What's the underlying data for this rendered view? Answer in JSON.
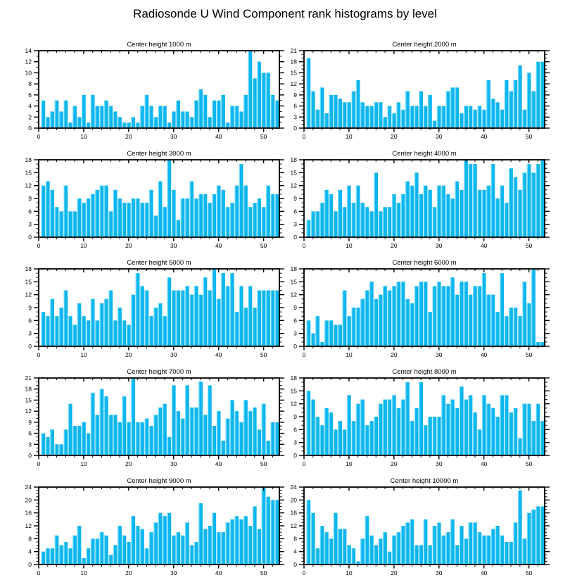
{
  "page": {
    "title": "Radiosonde U Wind Component rank histograms by level"
  },
  "style": {
    "background": "#ffffff",
    "axis_color": "#000000",
    "bar_color": "#0db6ef",
    "bar_highlight": "#7adef9",
    "text_color": "#000000"
  },
  "chart_data": [
    {
      "type": "bar",
      "title": "Center height 1000 m",
      "xlabel": "",
      "ylabel": "",
      "xlim": [
        0,
        53.5
      ],
      "ylim": [
        0,
        14
      ],
      "x_ticks": [
        0,
        10,
        20,
        30,
        40,
        50
      ],
      "y_ticks": [
        0,
        2,
        4,
        6,
        8,
        10,
        12,
        14
      ],
      "x_minor_step": 2,
      "y_minor_step": 1,
      "grid": false,
      "legend": "none",
      "values": [
        5,
        2,
        3,
        5,
        3,
        5,
        1,
        4,
        2,
        6,
        1,
        6,
        4,
        4,
        5,
        4,
        3,
        2,
        1,
        1,
        2,
        1,
        4,
        6,
        4,
        2,
        4,
        4,
        1,
        3,
        5,
        3,
        3,
        2,
        5,
        7,
        6,
        2,
        5,
        5,
        6,
        1,
        4,
        4,
        3,
        6,
        14,
        9,
        12,
        10,
        10,
        6,
        5
      ]
    },
    {
      "type": "bar",
      "title": "Center height 2000 m",
      "xlabel": "",
      "ylabel": "",
      "xlim": [
        0,
        53.5
      ],
      "ylim": [
        0,
        21
      ],
      "x_ticks": [
        0,
        10,
        20,
        30,
        40,
        50
      ],
      "y_ticks": [
        0,
        3,
        6,
        9,
        12,
        15,
        18,
        21
      ],
      "x_minor_step": 2,
      "y_minor_step": 1,
      "grid": false,
      "legend": "none",
      "values": [
        19,
        10,
        5,
        11,
        4,
        9,
        9,
        8,
        7,
        7,
        10,
        13,
        7,
        6,
        6,
        7,
        7,
        3,
        6,
        4,
        7,
        5,
        10,
        6,
        6,
        10,
        6,
        9,
        2,
        6,
        6,
        10,
        11,
        11,
        4,
        6,
        6,
        5,
        6,
        5,
        13,
        8,
        7,
        5,
        13,
        10,
        13,
        17,
        5,
        15,
        10,
        18,
        18
      ]
    },
    {
      "type": "bar",
      "title": "Center height 3000 m",
      "xlabel": "",
      "ylabel": "",
      "xlim": [
        0,
        53.5
      ],
      "ylim": [
        0,
        18
      ],
      "x_ticks": [
        0,
        10,
        20,
        30,
        40,
        50
      ],
      "y_ticks": [
        0,
        3,
        6,
        9,
        12,
        15,
        18
      ],
      "x_minor_step": 2,
      "y_minor_step": 1,
      "grid": false,
      "legend": "none",
      "values": [
        12,
        13,
        11,
        7,
        6,
        12,
        6,
        6,
        9,
        8,
        9,
        10,
        11,
        12,
        12,
        6,
        11,
        9,
        8,
        8,
        9,
        9,
        8,
        8,
        11,
        5,
        13,
        7,
        18,
        11,
        4,
        9,
        9,
        13,
        9,
        10,
        10,
        8,
        10,
        12,
        11,
        7,
        8,
        12,
        17,
        12,
        7,
        8,
        9,
        7,
        12,
        10,
        10
      ]
    },
    {
      "type": "bar",
      "title": "Center height 4000 m",
      "xlabel": "",
      "ylabel": "",
      "xlim": [
        0,
        53.5
      ],
      "ylim": [
        0,
        18
      ],
      "x_ticks": [
        0,
        10,
        20,
        30,
        40,
        50
      ],
      "y_ticks": [
        0,
        3,
        6,
        9,
        12,
        15,
        18
      ],
      "x_minor_step": 2,
      "y_minor_step": 1,
      "grid": false,
      "legend": "none",
      "values": [
        4,
        6,
        6,
        8,
        11,
        10,
        6,
        11,
        7,
        12,
        8,
        12,
        8,
        7,
        6,
        15,
        6,
        7,
        7,
        10,
        8,
        10,
        13,
        12,
        15,
        10,
        12,
        11,
        7,
        12,
        12,
        10,
        9,
        13,
        11,
        18,
        17,
        17,
        11,
        11,
        12,
        17,
        9,
        12,
        8,
        16,
        14,
        11,
        15,
        17,
        15,
        17,
        18
      ]
    },
    {
      "type": "bar",
      "title": "Center height 5000 m",
      "xlabel": "",
      "ylabel": "",
      "xlim": [
        0,
        53.5
      ],
      "ylim": [
        0,
        18
      ],
      "x_ticks": [
        0,
        10,
        20,
        30,
        40,
        50
      ],
      "y_ticks": [
        0,
        3,
        6,
        9,
        12,
        15,
        18
      ],
      "x_minor_step": 2,
      "y_minor_step": 1,
      "grid": false,
      "legend": "none",
      "values": [
        8,
        7,
        11,
        7,
        9,
        13,
        7,
        5,
        10,
        7,
        6,
        11,
        6,
        10,
        11,
        13,
        6,
        9,
        6,
        5,
        12,
        17,
        14,
        13,
        7,
        9,
        10,
        7,
        16,
        13,
        13,
        13,
        14,
        12,
        14,
        12,
        16,
        13,
        18,
        11,
        17,
        14,
        17,
        8,
        14,
        9,
        14,
        9,
        13,
        13,
        13,
        13,
        13
      ]
    },
    {
      "type": "bar",
      "title": "Center height 6000 m",
      "xlabel": "",
      "ylabel": "",
      "xlim": [
        0,
        53.5
      ],
      "ylim": [
        0,
        18
      ],
      "x_ticks": [
        0,
        10,
        20,
        30,
        40,
        50
      ],
      "y_ticks": [
        0,
        3,
        6,
        9,
        12,
        15,
        18
      ],
      "x_minor_step": 2,
      "y_minor_step": 1,
      "grid": false,
      "legend": "none",
      "values": [
        6,
        3,
        7,
        1,
        6,
        6,
        5,
        5,
        13,
        7,
        9,
        9,
        11,
        13,
        15,
        11,
        12,
        14,
        13,
        14,
        15,
        15,
        11,
        10,
        14,
        15,
        15,
        8,
        14,
        15,
        14,
        14,
        16,
        12,
        15,
        15,
        12,
        14,
        14,
        17,
        12,
        12,
        8,
        17,
        7,
        9,
        9,
        7,
        15,
        10,
        18,
        1,
        1
      ]
    },
    {
      "type": "bar",
      "title": "Center height 7000 m",
      "xlabel": "",
      "ylabel": "",
      "xlim": [
        0,
        53.5
      ],
      "ylim": [
        0,
        21
      ],
      "x_ticks": [
        0,
        10,
        20,
        30,
        40,
        50
      ],
      "y_ticks": [
        0,
        3,
        6,
        9,
        12,
        15,
        18,
        21
      ],
      "x_minor_step": 2,
      "y_minor_step": 1,
      "grid": false,
      "legend": "none",
      "values": [
        6,
        5,
        7,
        3,
        3,
        7,
        14,
        8,
        8,
        9,
        6,
        17,
        11,
        18,
        16,
        11,
        11,
        9,
        16,
        9,
        21,
        9,
        9,
        10,
        8,
        11,
        13,
        14,
        5,
        19,
        12,
        10,
        19,
        13,
        13,
        20,
        11,
        19,
        8,
        12,
        4,
        10,
        15,
        12,
        9,
        15,
        12,
        13,
        7,
        14,
        4,
        9,
        9
      ]
    },
    {
      "type": "bar",
      "title": "Center height 8000 m",
      "xlabel": "",
      "ylabel": "",
      "xlim": [
        0,
        53.5
      ],
      "ylim": [
        0,
        18
      ],
      "x_ticks": [
        0,
        10,
        20,
        30,
        40,
        50
      ],
      "y_ticks": [
        0,
        3,
        6,
        9,
        12,
        15,
        18
      ],
      "x_minor_step": 2,
      "y_minor_step": 1,
      "grid": false,
      "legend": "none",
      "values": [
        15,
        13,
        9,
        7,
        11,
        10,
        6,
        8,
        6,
        14,
        8,
        12,
        13,
        7,
        8,
        9,
        12,
        13,
        13,
        14,
        11,
        13,
        17,
        8,
        11,
        17,
        7,
        9,
        9,
        9,
        14,
        12,
        13,
        11,
        16,
        13,
        14,
        10,
        6,
        14,
        12,
        11,
        9,
        14,
        14,
        10,
        11,
        4,
        12,
        12,
        8,
        12,
        8
      ]
    },
    {
      "type": "bar",
      "title": "Center height 9000 m",
      "xlabel": "",
      "ylabel": "",
      "xlim": [
        0,
        53.5
      ],
      "ylim": [
        0,
        24
      ],
      "x_ticks": [
        0,
        10,
        20,
        30,
        40,
        50
      ],
      "y_ticks": [
        0,
        4,
        8,
        12,
        16,
        20,
        24
      ],
      "x_minor_step": 2,
      "y_minor_step": 1,
      "grid": false,
      "legend": "none",
      "values": [
        4,
        5,
        5,
        9,
        6,
        7,
        5,
        9,
        12,
        2,
        5,
        8,
        8,
        10,
        9,
        3,
        6,
        12,
        9,
        7,
        15,
        12,
        11,
        5,
        10,
        13,
        16,
        15,
        16,
        9,
        10,
        9,
        13,
        6,
        7,
        19,
        11,
        12,
        16,
        10,
        10,
        13,
        14,
        15,
        14,
        15,
        12,
        18,
        11,
        24,
        21,
        20,
        20
      ]
    },
    {
      "type": "bar",
      "title": "Center height 10000 m",
      "xlabel": "",
      "ylabel": "",
      "xlim": [
        0,
        53.5
      ],
      "ylim": [
        0,
        24
      ],
      "x_ticks": [
        0,
        10,
        20,
        30,
        40,
        50
      ],
      "y_ticks": [
        0,
        4,
        8,
        12,
        16,
        20,
        24
      ],
      "x_minor_step": 2,
      "y_minor_step": 1,
      "grid": false,
      "legend": "none",
      "values": [
        20,
        16,
        5,
        12,
        10,
        8,
        16,
        11,
        11,
        6,
        5,
        1,
        8,
        15,
        9,
        6,
        8,
        10,
        4,
        9,
        10,
        12,
        13,
        14,
        6,
        6,
        14,
        6,
        12,
        13,
        9,
        10,
        14,
        6,
        12,
        8,
        13,
        13,
        10,
        9,
        9,
        11,
        12,
        9,
        7,
        7,
        13,
        23,
        8,
        16,
        17,
        18,
        18
      ]
    }
  ]
}
